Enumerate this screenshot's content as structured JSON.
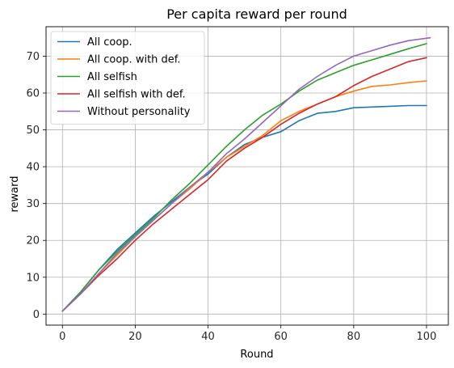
{
  "chart_data": {
    "type": "line",
    "title": "Per capita reward per round",
    "xlabel": "Round",
    "ylabel": "reward",
    "xlim": [
      -4.5,
      106
    ],
    "ylim": [
      -3,
      78
    ],
    "xticks": [
      0,
      20,
      40,
      60,
      80,
      100
    ],
    "yticks": [
      0,
      10,
      20,
      30,
      40,
      50,
      60,
      70
    ],
    "grid": true,
    "legend_position": "top-left",
    "series": [
      {
        "name": "All coop.",
        "color": "#1f77b4",
        "x": [
          0,
          5,
          10,
          15,
          20,
          25,
          30,
          35,
          40,
          45,
          50,
          55,
          60,
          65,
          70,
          75,
          80,
          85,
          90,
          95,
          100
        ],
        "y": [
          0.8,
          6.0,
          12.0,
          17.5,
          22.0,
          26.5,
          30.5,
          34.5,
          38.0,
          42.5,
          46.0,
          48.0,
          49.5,
          52.5,
          54.5,
          55.0,
          56.0,
          56.2,
          56.4,
          56.6,
          56.6
        ]
      },
      {
        "name": "All coop. with def.",
        "color": "#ff7f0e",
        "x": [
          0,
          5,
          10,
          15,
          20,
          25,
          30,
          35,
          40,
          45,
          50,
          55,
          60,
          65,
          70,
          75,
          80,
          85,
          90,
          95,
          100
        ],
        "y": [
          0.8,
          5.5,
          11.0,
          16.0,
          21.0,
          25.5,
          30.0,
          34.0,
          38.5,
          42.5,
          45.5,
          48.5,
          52.5,
          55.0,
          57.0,
          59.0,
          60.5,
          61.8,
          62.2,
          62.8,
          63.3
        ]
      },
      {
        "name": "All selfish",
        "color": "#2ca02c",
        "x": [
          0,
          5,
          10,
          15,
          20,
          25,
          30,
          35,
          40,
          45,
          50,
          55,
          60,
          65,
          70,
          75,
          80,
          85,
          90,
          95,
          100
        ],
        "y": [
          0.8,
          6.0,
          12.0,
          17.0,
          21.5,
          26.0,
          31.0,
          35.5,
          40.5,
          45.5,
          50.0,
          54.0,
          57.0,
          60.5,
          63.5,
          65.5,
          67.5,
          69.0,
          70.5,
          72.0,
          73.4
        ]
      },
      {
        "name": "All selfish with def.",
        "color": "#d62728",
        "x": [
          0,
          5,
          10,
          15,
          20,
          25,
          30,
          35,
          40,
          45,
          50,
          55,
          60,
          65,
          70,
          75,
          80,
          85,
          90,
          95,
          100
        ],
        "y": [
          0.8,
          5.5,
          10.5,
          15.0,
          20.0,
          24.5,
          28.5,
          32.5,
          36.5,
          41.5,
          45.0,
          48.0,
          51.5,
          54.5,
          57.0,
          59.0,
          62.0,
          64.5,
          66.5,
          68.5,
          69.6
        ]
      },
      {
        "name": "Without personality",
        "color": "#9467bd",
        "x": [
          0,
          5,
          10,
          15,
          20,
          25,
          30,
          35,
          40,
          45,
          50,
          55,
          60,
          65,
          70,
          75,
          80,
          85,
          90,
          95,
          101
        ],
        "y": [
          0.8,
          5.5,
          11.0,
          16.5,
          21.0,
          25.5,
          30.0,
          34.5,
          38.5,
          43.5,
          47.5,
          52.0,
          56.5,
          61.0,
          64.5,
          67.5,
          70.0,
          71.5,
          73.0,
          74.2,
          75.0
        ]
      }
    ]
  }
}
